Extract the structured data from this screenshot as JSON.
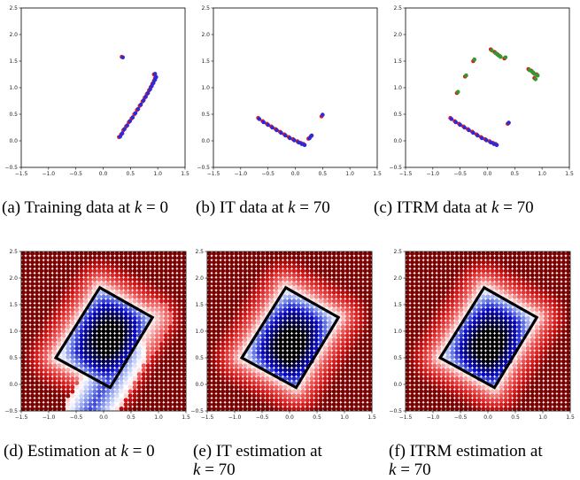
{
  "colors": {
    "red": "#e31a1c",
    "blue": "#2b2bd9",
    "green": "#2e9a2e",
    "frame": "#000000",
    "heat_low": "#000000",
    "heat_mid": "#ffffff",
    "heat_high": "#7a0000"
  },
  "captions": [
    {
      "label": "(a) Training data at ",
      "var": "k",
      "eq": " = 0",
      "cont": ""
    },
    {
      "label": "(b) IT data at ",
      "var": "k",
      "eq": " = 70",
      "cont": ""
    },
    {
      "label": "(c) ITRM data at ",
      "var": "k",
      "eq": " = 70",
      "cont": ""
    },
    {
      "label": "(d) Estimation at ",
      "var": "k",
      "eq": " = 0",
      "cont": ""
    },
    {
      "label": "(e) IT estimation at",
      "var": "k",
      "eq": " = 70",
      "cont": "second-line"
    },
    {
      "label": "(f) ITRM estimation at",
      "var": "k",
      "eq": " = 70",
      "cont": "second-line"
    }
  ],
  "chart_data": [
    {
      "type": "scatter",
      "xlim": [
        -1.5,
        1.5
      ],
      "ylim": [
        -0.5,
        2.5
      ],
      "xticks": [
        "−1.5",
        "−1.0",
        "−0.5",
        "0.0",
        "0.5",
        "1.0",
        "1.5"
      ],
      "yticks": [
        "−0.5",
        "0.0",
        "0.5",
        "1.0",
        "1.5",
        "2.0",
        "2.5"
      ],
      "series": [
        {
          "color": "red",
          "points": [
            [
              0.34,
              1.58
            ],
            [
              0.29,
              0.07
            ],
            [
              0.33,
              0.12
            ],
            [
              0.37,
              0.2
            ],
            [
              0.42,
              0.27
            ],
            [
              0.47,
              0.35
            ],
            [
              0.52,
              0.42
            ],
            [
              0.57,
              0.5
            ],
            [
              0.62,
              0.58
            ],
            [
              0.67,
              0.66
            ],
            [
              0.72,
              0.74
            ],
            [
              0.76,
              0.81
            ],
            [
              0.8,
              0.88
            ],
            [
              0.84,
              0.95
            ],
            [
              0.87,
              1.01
            ],
            [
              0.9,
              1.07
            ],
            [
              0.93,
              1.13
            ],
            [
              0.95,
              1.18
            ],
            [
              0.93,
              1.25
            ]
          ]
        },
        {
          "color": "blue",
          "points": [
            [
              0.36,
              1.57
            ],
            [
              0.31,
              0.08
            ],
            [
              0.35,
              0.14
            ],
            [
              0.39,
              0.22
            ],
            [
              0.44,
              0.29
            ],
            [
              0.49,
              0.37
            ],
            [
              0.54,
              0.44
            ],
            [
              0.59,
              0.52
            ],
            [
              0.64,
              0.6
            ],
            [
              0.69,
              0.68
            ],
            [
              0.74,
              0.76
            ],
            [
              0.78,
              0.83
            ],
            [
              0.82,
              0.9
            ],
            [
              0.86,
              0.97
            ],
            [
              0.89,
              1.03
            ],
            [
              0.92,
              1.09
            ],
            [
              0.95,
              1.15
            ],
            [
              0.97,
              1.2
            ],
            [
              0.95,
              1.26
            ]
          ]
        }
      ]
    },
    {
      "type": "scatter",
      "xlim": [
        -1.5,
        1.5
      ],
      "ylim": [
        -0.5,
        2.5
      ],
      "xticks": [
        "−1.5",
        "−1.0",
        "−0.5",
        "0.0",
        "0.5",
        "1.0",
        "1.5"
      ],
      "yticks": [
        "−0.5",
        "0.0",
        "0.5",
        "1.0",
        "1.5",
        "2.0",
        "2.5"
      ],
      "series": [
        {
          "color": "red",
          "points": [
            [
              -0.68,
              0.43
            ],
            [
              -0.6,
              0.37
            ],
            [
              -0.52,
              0.32
            ],
            [
              -0.44,
              0.27
            ],
            [
              -0.36,
              0.22
            ],
            [
              -0.28,
              0.17
            ],
            [
              -0.2,
              0.12
            ],
            [
              -0.12,
              0.07
            ],
            [
              -0.04,
              0.03
            ],
            [
              0.04,
              -0.01
            ],
            [
              0.1,
              -0.04
            ],
            [
              0.15,
              -0.06
            ],
            [
              0.24,
              0.04
            ],
            [
              0.28,
              0.08
            ],
            [
              0.48,
              0.46
            ]
          ]
        },
        {
          "color": "blue",
          "points": [
            [
              -0.66,
              0.41
            ],
            [
              -0.58,
              0.35
            ],
            [
              -0.5,
              0.3
            ],
            [
              -0.42,
              0.25
            ],
            [
              -0.34,
              0.2
            ],
            [
              -0.26,
              0.15
            ],
            [
              -0.18,
              0.1
            ],
            [
              -0.1,
              0.05
            ],
            [
              -0.02,
              0.01
            ],
            [
              0.06,
              -0.03
            ],
            [
              0.12,
              -0.06
            ],
            [
              0.17,
              -0.08
            ],
            [
              0.26,
              0.05
            ],
            [
              0.3,
              0.1
            ],
            [
              0.5,
              0.49
            ]
          ]
        }
      ]
    },
    {
      "type": "scatter",
      "xlim": [
        -1.5,
        1.5
      ],
      "ylim": [
        -0.5,
        2.5
      ],
      "xticks": [
        "−1.5",
        "−1.0",
        "−0.5",
        "0.0",
        "0.5",
        "1.0",
        "1.5"
      ],
      "yticks": [
        "−0.5",
        "0.0",
        "0.5",
        "1.0",
        "1.5",
        "2.0",
        "2.5"
      ],
      "series": [
        {
          "color": "red",
          "points": [
            [
              -0.56,
              0.9
            ],
            [
              -0.41,
              1.21
            ],
            [
              -0.26,
              1.5
            ],
            [
              0.06,
              1.72
            ],
            [
              0.13,
              1.67
            ],
            [
              0.18,
              1.63
            ],
            [
              0.22,
              1.6
            ],
            [
              0.31,
              1.55
            ],
            [
              0.75,
              1.35
            ],
            [
              0.8,
              1.32
            ],
            [
              0.84,
              1.28
            ],
            [
              0.9,
              1.25
            ],
            [
              0.86,
              1.18
            ],
            [
              -0.68,
              0.43
            ],
            [
              -0.6,
              0.37
            ],
            [
              -0.52,
              0.32
            ],
            [
              -0.44,
              0.27
            ],
            [
              -0.36,
              0.22
            ],
            [
              -0.28,
              0.17
            ],
            [
              -0.2,
              0.12
            ],
            [
              -0.12,
              0.07
            ],
            [
              -0.04,
              0.03
            ],
            [
              0.04,
              -0.01
            ],
            [
              0.1,
              -0.04
            ],
            [
              0.15,
              -0.06
            ],
            [
              0.37,
              0.32
            ]
          ]
        },
        {
          "color": "green",
          "points": [
            [
              -0.54,
              0.92
            ],
            [
              -0.39,
              1.23
            ],
            [
              -0.24,
              1.53
            ],
            [
              0.08,
              1.7
            ],
            [
              0.15,
              1.65
            ],
            [
              0.2,
              1.61
            ],
            [
              0.24,
              1.58
            ],
            [
              0.33,
              1.57
            ],
            [
              0.77,
              1.33
            ],
            [
              0.82,
              1.3
            ],
            [
              0.86,
              1.26
            ],
            [
              0.92,
              1.23
            ],
            [
              0.88,
              1.16
            ]
          ]
        },
        {
          "color": "blue",
          "points": [
            [
              -0.66,
              0.41
            ],
            [
              -0.58,
              0.35
            ],
            [
              -0.5,
              0.3
            ],
            [
              -0.42,
              0.25
            ],
            [
              -0.34,
              0.2
            ],
            [
              -0.26,
              0.15
            ],
            [
              -0.18,
              0.1
            ],
            [
              -0.1,
              0.05
            ],
            [
              -0.02,
              0.01
            ],
            [
              0.06,
              -0.03
            ],
            [
              0.12,
              -0.06
            ],
            [
              0.17,
              -0.08
            ],
            [
              0.39,
              0.34
            ]
          ]
        }
      ]
    },
    {
      "type": "heatmap",
      "xlim": [
        -1.5,
        1.5
      ],
      "ylim": [
        -0.5,
        2.5
      ],
      "xticks": [
        "−1.5",
        "−1.0",
        "−0.5",
        "0.0",
        "0.5",
        "1.0",
        "1.5"
      ],
      "yticks": [
        "−0.5",
        "0.0",
        "0.5",
        "1.0",
        "1.5",
        "2.0",
        "2.5"
      ],
      "polygon": [
        [
          -0.87,
          0.5
        ],
        [
          -0.07,
          1.82
        ],
        [
          0.89,
          1.26
        ],
        [
          0.12,
          -0.06
        ]
      ],
      "field_center": [
        0.12,
        0.85
      ],
      "field_ridge": [
        [
          0.3,
          0.0
        ],
        [
          0.95,
          1.25
        ]
      ]
    },
    {
      "type": "heatmap",
      "xlim": [
        -1.5,
        1.5
      ],
      "ylim": [
        -0.5,
        2.5
      ],
      "xticks": [
        "−1.5",
        "−1.0",
        "−0.5",
        "0.0",
        "0.5",
        "1.0",
        "1.5"
      ],
      "yticks": [
        "−0.5",
        "0.0",
        "0.5",
        "1.0",
        "1.5",
        "2.0",
        "2.5"
      ],
      "polygon": [
        [
          -0.87,
          0.5
        ],
        [
          -0.07,
          1.82
        ],
        [
          0.89,
          1.26
        ],
        [
          0.12,
          -0.06
        ]
      ],
      "field_center": [
        0.05,
        0.72
      ]
    },
    {
      "type": "heatmap",
      "xlim": [
        -1.5,
        1.5
      ],
      "ylim": [
        -0.5,
        2.5
      ],
      "xticks": [
        "−1.5",
        "−1.0",
        "−0.5",
        "0.0",
        "0.5",
        "1.0",
        "1.5"
      ],
      "yticks": [
        "−0.5",
        "0.0",
        "0.5",
        "1.0",
        "1.5",
        "2.0",
        "2.5"
      ],
      "polygon": [
        [
          -0.87,
          0.5
        ],
        [
          -0.07,
          1.82
        ],
        [
          0.89,
          1.26
        ],
        [
          0.12,
          -0.06
        ]
      ],
      "field_center": [
        0.05,
        0.72
      ]
    }
  ]
}
